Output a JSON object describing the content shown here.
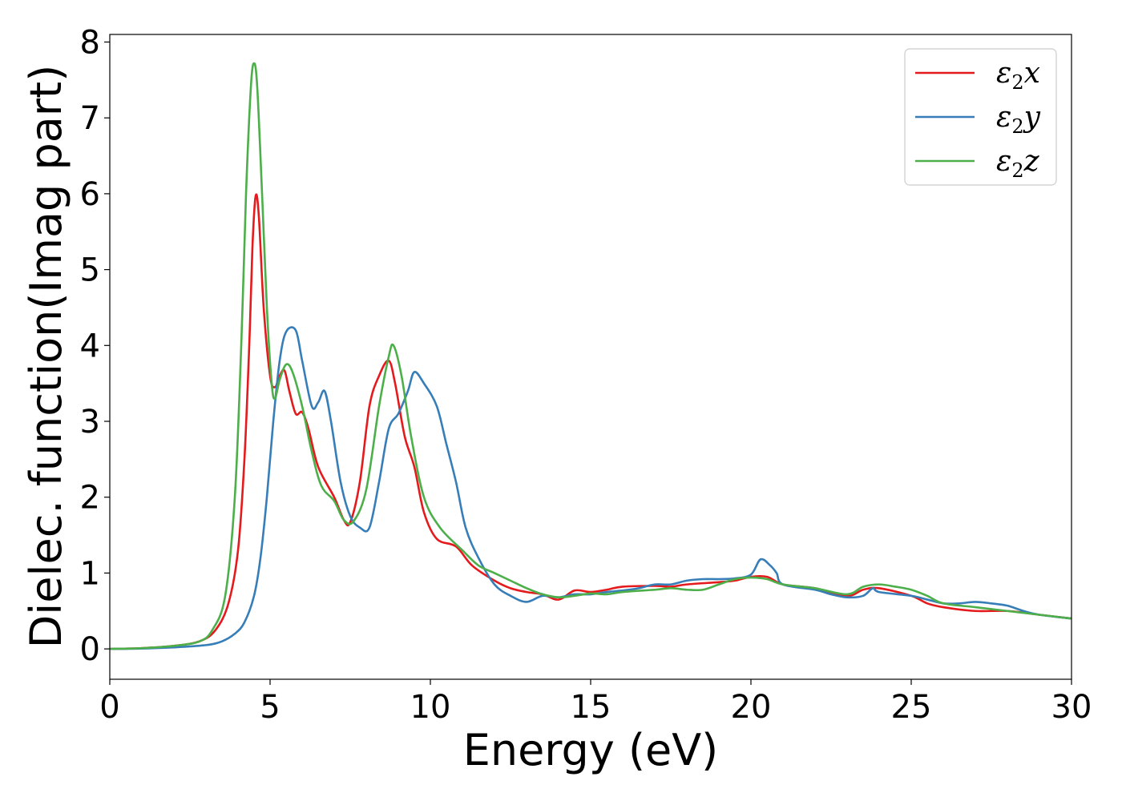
{
  "chart_data": {
    "type": "line",
    "title": "",
    "xlabel": "Energy (eV)",
    "ylabel": "Dielec. function(Imag part)",
    "xlim": [
      0,
      30
    ],
    "ylim": [
      -0.4,
      8.1
    ],
    "xticks": [
      0,
      5,
      10,
      15,
      20,
      25,
      30
    ],
    "yticks": [
      0,
      1,
      2,
      3,
      4,
      5,
      6,
      7,
      8
    ],
    "grid": false,
    "legend_position": "top-right",
    "series": [
      {
        "name": "ε2x",
        "legend_base": "ε",
        "legend_sub": "2",
        "legend_suffix": "x",
        "color": "#e41a1c",
        "points": [
          [
            0,
            0
          ],
          [
            1,
            0.01
          ],
          [
            2,
            0.04
          ],
          [
            2.8,
            0.1
          ],
          [
            3.3,
            0.25
          ],
          [
            3.7,
            0.6
          ],
          [
            4.0,
            1.3
          ],
          [
            4.2,
            2.5
          ],
          [
            4.35,
            4.0
          ],
          [
            4.45,
            5.3
          ],
          [
            4.55,
            5.97
          ],
          [
            4.65,
            5.7
          ],
          [
            4.8,
            4.5
          ],
          [
            5.0,
            3.6
          ],
          [
            5.15,
            3.45
          ],
          [
            5.3,
            3.6
          ],
          [
            5.45,
            3.67
          ],
          [
            5.6,
            3.4
          ],
          [
            5.8,
            3.1
          ],
          [
            6.0,
            3.12
          ],
          [
            6.2,
            2.9
          ],
          [
            6.5,
            2.4
          ],
          [
            7.0,
            2.0
          ],
          [
            7.3,
            1.7
          ],
          [
            7.5,
            1.67
          ],
          [
            7.8,
            2.2
          ],
          [
            8.1,
            3.2
          ],
          [
            8.4,
            3.6
          ],
          [
            8.7,
            3.8
          ],
          [
            8.9,
            3.5
          ],
          [
            9.2,
            2.8
          ],
          [
            9.5,
            2.4
          ],
          [
            9.8,
            1.8
          ],
          [
            10.2,
            1.45
          ],
          [
            10.8,
            1.35
          ],
          [
            11.3,
            1.1
          ],
          [
            12.0,
            0.9
          ],
          [
            12.5,
            0.8
          ],
          [
            13.0,
            0.75
          ],
          [
            13.5,
            0.72
          ],
          [
            14.0,
            0.65
          ],
          [
            14.5,
            0.77
          ],
          [
            15.0,
            0.75
          ],
          [
            15.5,
            0.78
          ],
          [
            16.0,
            0.82
          ],
          [
            17.0,
            0.83
          ],
          [
            17.5,
            0.82
          ],
          [
            18.0,
            0.85
          ],
          [
            19.0,
            0.88
          ],
          [
            19.5,
            0.9
          ],
          [
            20.0,
            0.95
          ],
          [
            20.5,
            0.95
          ],
          [
            21.0,
            0.85
          ],
          [
            22.0,
            0.8
          ],
          [
            23.0,
            0.7
          ],
          [
            23.5,
            0.78
          ],
          [
            24.0,
            0.8
          ],
          [
            25.0,
            0.7
          ],
          [
            25.5,
            0.6
          ],
          [
            26.0,
            0.55
          ],
          [
            27.0,
            0.5
          ],
          [
            28.0,
            0.5
          ],
          [
            29.0,
            0.45
          ],
          [
            30.0,
            0.4
          ]
        ]
      },
      {
        "name": "ε2y",
        "legend_base": "ε",
        "legend_sub": "2",
        "legend_suffix": "y",
        "color": "#377eb8",
        "points": [
          [
            0,
            0
          ],
          [
            1,
            0.005
          ],
          [
            2,
            0.02
          ],
          [
            3,
            0.05
          ],
          [
            3.5,
            0.1
          ],
          [
            3.9,
            0.2
          ],
          [
            4.2,
            0.35
          ],
          [
            4.5,
            0.7
          ],
          [
            4.7,
            1.2
          ],
          [
            4.9,
            2.0
          ],
          [
            5.1,
            3.0
          ],
          [
            5.3,
            3.8
          ],
          [
            5.5,
            4.18
          ],
          [
            5.8,
            4.2
          ],
          [
            6.0,
            3.8
          ],
          [
            6.3,
            3.2
          ],
          [
            6.5,
            3.25
          ],
          [
            6.7,
            3.4
          ],
          [
            6.9,
            3.0
          ],
          [
            7.2,
            2.2
          ],
          [
            7.5,
            1.75
          ],
          [
            7.8,
            1.6
          ],
          [
            8.1,
            1.6
          ],
          [
            8.4,
            2.2
          ],
          [
            8.7,
            2.9
          ],
          [
            9.0,
            3.1
          ],
          [
            9.3,
            3.4
          ],
          [
            9.5,
            3.65
          ],
          [
            9.8,
            3.5
          ],
          [
            10.2,
            3.2
          ],
          [
            10.5,
            2.7
          ],
          [
            10.8,
            2.2
          ],
          [
            11.1,
            1.6
          ],
          [
            11.5,
            1.2
          ],
          [
            12.0,
            0.85
          ],
          [
            12.5,
            0.7
          ],
          [
            13.0,
            0.62
          ],
          [
            13.5,
            0.7
          ],
          [
            14.0,
            0.68
          ],
          [
            14.5,
            0.72
          ],
          [
            15.0,
            0.72
          ],
          [
            15.5,
            0.75
          ],
          [
            16.0,
            0.77
          ],
          [
            16.5,
            0.8
          ],
          [
            17.0,
            0.85
          ],
          [
            17.5,
            0.85
          ],
          [
            18.0,
            0.9
          ],
          [
            18.5,
            0.92
          ],
          [
            19.0,
            0.92
          ],
          [
            19.5,
            0.93
          ],
          [
            20.0,
            0.98
          ],
          [
            20.3,
            1.18
          ],
          [
            20.6,
            1.1
          ],
          [
            20.8,
            1.0
          ],
          [
            21.0,
            0.85
          ],
          [
            22.0,
            0.78
          ],
          [
            22.5,
            0.72
          ],
          [
            23.0,
            0.68
          ],
          [
            23.5,
            0.7
          ],
          [
            23.8,
            0.8
          ],
          [
            24.0,
            0.75
          ],
          [
            25.0,
            0.7
          ],
          [
            25.5,
            0.65
          ],
          [
            26.0,
            0.6
          ],
          [
            26.5,
            0.6
          ],
          [
            27.0,
            0.62
          ],
          [
            27.5,
            0.6
          ],
          [
            28.0,
            0.57
          ],
          [
            28.5,
            0.5
          ],
          [
            29.0,
            0.45
          ],
          [
            30.0,
            0.4
          ]
        ]
      },
      {
        "name": "ε2z",
        "legend_base": "ε",
        "legend_sub": "2",
        "legend_suffix": "z",
        "color": "#4daf4a",
        "points": [
          [
            0,
            0
          ],
          [
            1,
            0.01
          ],
          [
            2,
            0.04
          ],
          [
            2.8,
            0.1
          ],
          [
            3.2,
            0.25
          ],
          [
            3.6,
            0.7
          ],
          [
            3.9,
            2.0
          ],
          [
            4.1,
            4.0
          ],
          [
            4.25,
            6.0
          ],
          [
            4.4,
            7.4
          ],
          [
            4.5,
            7.72
          ],
          [
            4.6,
            7.4
          ],
          [
            4.75,
            6.0
          ],
          [
            4.9,
            4.5
          ],
          [
            5.05,
            3.5
          ],
          [
            5.15,
            3.3
          ],
          [
            5.3,
            3.55
          ],
          [
            5.5,
            3.75
          ],
          [
            5.7,
            3.65
          ],
          [
            6.0,
            3.2
          ],
          [
            6.3,
            2.6
          ],
          [
            6.6,
            2.15
          ],
          [
            7.0,
            1.95
          ],
          [
            7.3,
            1.7
          ],
          [
            7.6,
            1.68
          ],
          [
            8.0,
            2.1
          ],
          [
            8.4,
            3.2
          ],
          [
            8.7,
            3.85
          ],
          [
            8.85,
            4.0
          ],
          [
            9.1,
            3.6
          ],
          [
            9.4,
            2.8
          ],
          [
            9.8,
            2.0
          ],
          [
            10.3,
            1.6
          ],
          [
            11.0,
            1.3
          ],
          [
            11.5,
            1.1
          ],
          [
            12.0,
            1.0
          ],
          [
            12.5,
            0.9
          ],
          [
            13.0,
            0.8
          ],
          [
            13.5,
            0.72
          ],
          [
            14.0,
            0.68
          ],
          [
            14.5,
            0.7
          ],
          [
            15.0,
            0.73
          ],
          [
            15.5,
            0.72
          ],
          [
            16.0,
            0.75
          ],
          [
            17.0,
            0.78
          ],
          [
            17.5,
            0.8
          ],
          [
            18.0,
            0.78
          ],
          [
            18.5,
            0.78
          ],
          [
            19.0,
            0.85
          ],
          [
            19.5,
            0.92
          ],
          [
            20.0,
            0.94
          ],
          [
            20.5,
            0.92
          ],
          [
            21.0,
            0.85
          ],
          [
            22.0,
            0.8
          ],
          [
            23.0,
            0.72
          ],
          [
            23.5,
            0.82
          ],
          [
            24.0,
            0.85
          ],
          [
            24.5,
            0.82
          ],
          [
            25.0,
            0.78
          ],
          [
            25.5,
            0.7
          ],
          [
            26.0,
            0.6
          ],
          [
            27.0,
            0.55
          ],
          [
            28.0,
            0.5
          ],
          [
            29.0,
            0.45
          ],
          [
            30.0,
            0.4
          ]
        ]
      }
    ]
  }
}
